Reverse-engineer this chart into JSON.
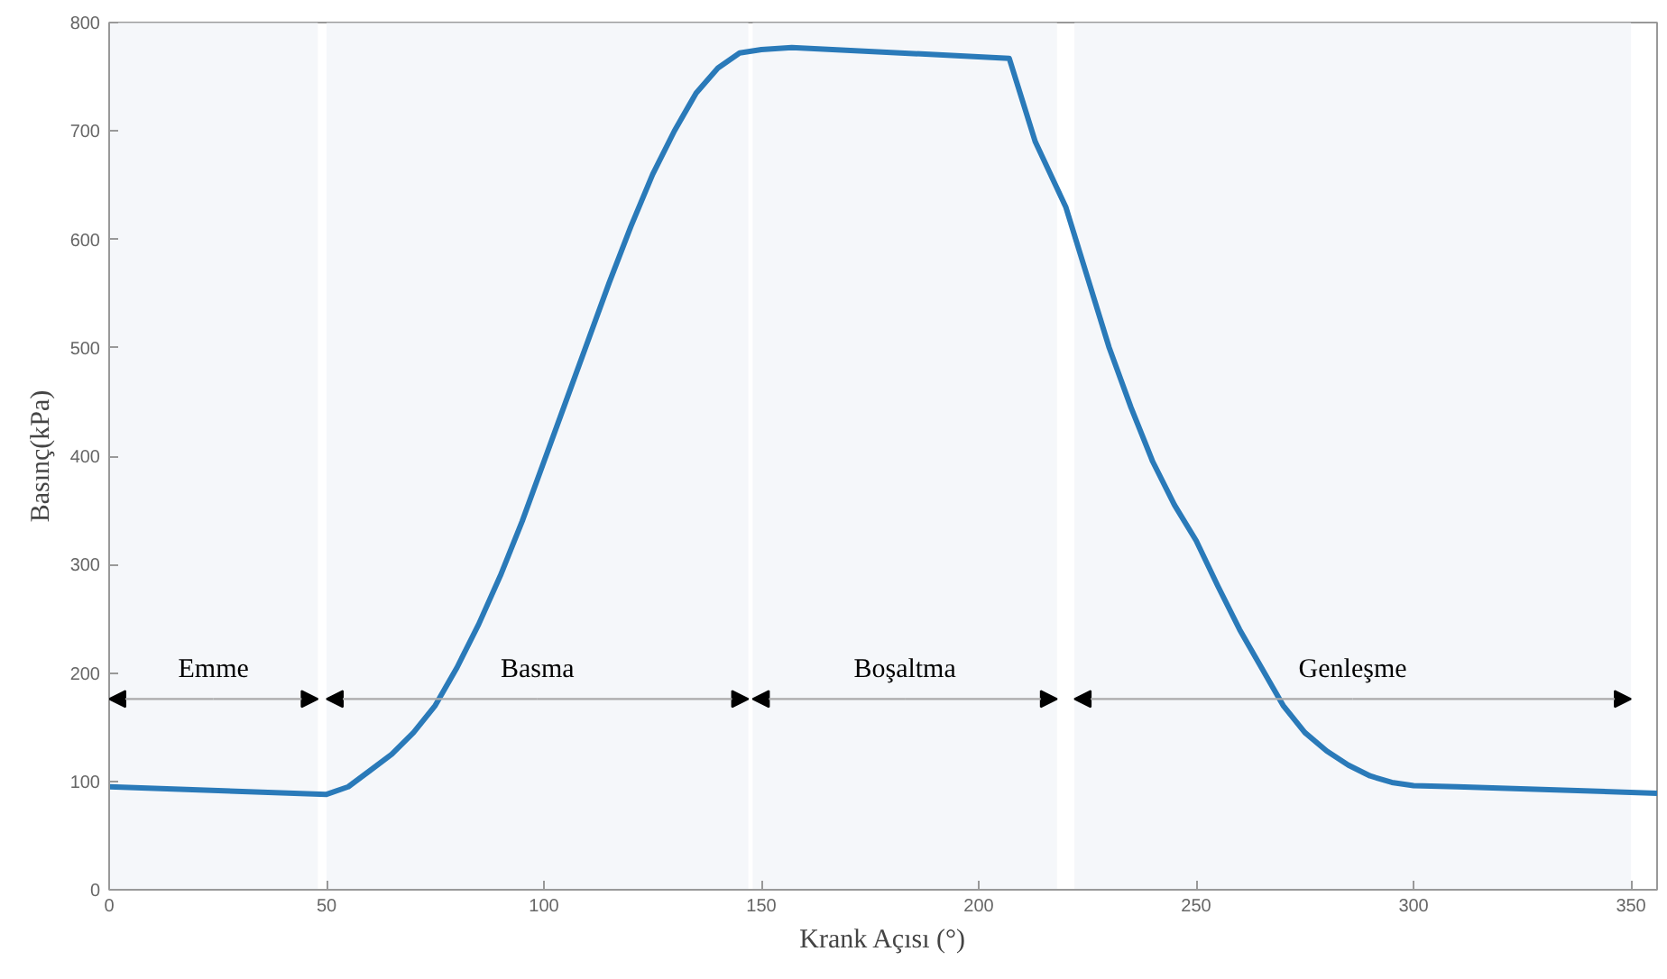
{
  "chart_data": {
    "type": "line",
    "xlabel": "Krank Açısı (°)",
    "ylabel": "Basınç(kPa)",
    "x": [
      0,
      50,
      55,
      60,
      65,
      70,
      75,
      80,
      85,
      90,
      95,
      100,
      105,
      110,
      115,
      120,
      125,
      130,
      135,
      140,
      145,
      150,
      157,
      207,
      213,
      220,
      225,
      230,
      235,
      240,
      245,
      250,
      255,
      260,
      265,
      270,
      275,
      280,
      285,
      290,
      295,
      300,
      310,
      356
    ],
    "series": [
      {
        "color": "#2a7ab9",
        "values": [
          95,
          88,
          95,
          110,
          125,
          145,
          170,
          205,
          245,
          290,
          340,
          395,
          450,
          505,
          560,
          612,
          660,
          700,
          735,
          758,
          772,
          775,
          777,
          767,
          690,
          630,
          565,
          500,
          445,
          395,
          355,
          322,
          280,
          240,
          205,
          170,
          145,
          128,
          115,
          105,
          99,
          96,
          95,
          89
        ]
      }
    ],
    "xlim": [
      0,
      356
    ],
    "ylim": [
      0,
      800
    ],
    "xticks": [
      0,
      50,
      100,
      150,
      200,
      250,
      300,
      350
    ],
    "yticks": [
      0,
      100,
      200,
      300,
      400,
      500,
      600,
      700,
      800
    ],
    "bands": [
      {
        "axis": "x",
        "from": 0,
        "to": 48,
        "label": "Emme"
      },
      {
        "axis": "x",
        "from": 50,
        "to": 147,
        "label": "Basma"
      },
      {
        "axis": "x",
        "from": 148,
        "to": 218,
        "label": "Boşaltma"
      },
      {
        "axis": "x",
        "from": 222,
        "to": 350,
        "label": "Genleşme"
      }
    ],
    "grid": false,
    "marker": "none",
    "line_style": "solid"
  }
}
